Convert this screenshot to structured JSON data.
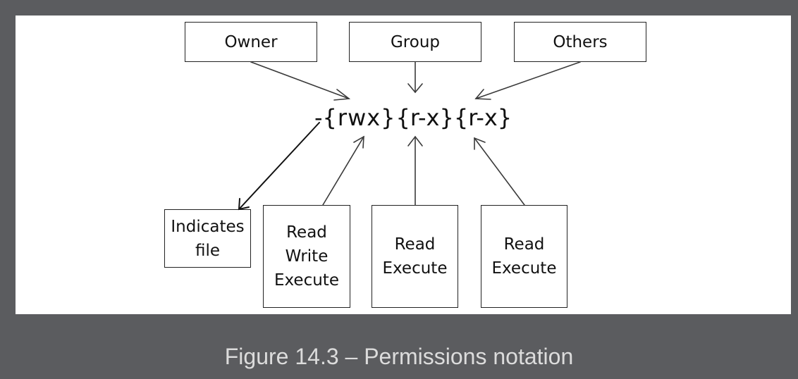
{
  "diagram": {
    "top_boxes": {
      "owner": "Owner",
      "group": "Group",
      "others": "Others"
    },
    "notation": {
      "prefix": "-",
      "owner_part": "{rwx}",
      "group_part": "{r-x}",
      "others_part": "{r-x}"
    },
    "bottom_boxes": {
      "file_type": [
        "Indicates",
        "file"
      ],
      "owner_perms": [
        "Read",
        "Write",
        "Execute"
      ],
      "group_perms": [
        "Read",
        "Execute"
      ],
      "others_perms": [
        "Read",
        "Execute"
      ]
    }
  },
  "caption": "Figure 14.3 – Permissions notation"
}
